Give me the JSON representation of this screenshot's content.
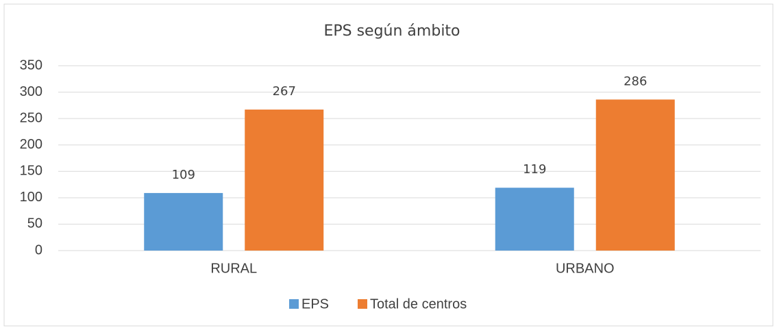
{
  "chart_data": {
    "type": "bar",
    "title": "EPS según ámbito",
    "categories": [
      "RURAL",
      "URBANO"
    ],
    "series": [
      {
        "name": "EPS",
        "color": "#5b9bd5",
        "values": [
          109,
          119
        ]
      },
      {
        "name": "Total de centros",
        "color": "#ed7d31",
        "values": [
          267,
          286
        ]
      }
    ],
    "ylim": [
      0,
      350
    ],
    "yticks": [
      0,
      50,
      100,
      150,
      200,
      250,
      300,
      350
    ],
    "grid": true,
    "legend": "bottom"
  }
}
